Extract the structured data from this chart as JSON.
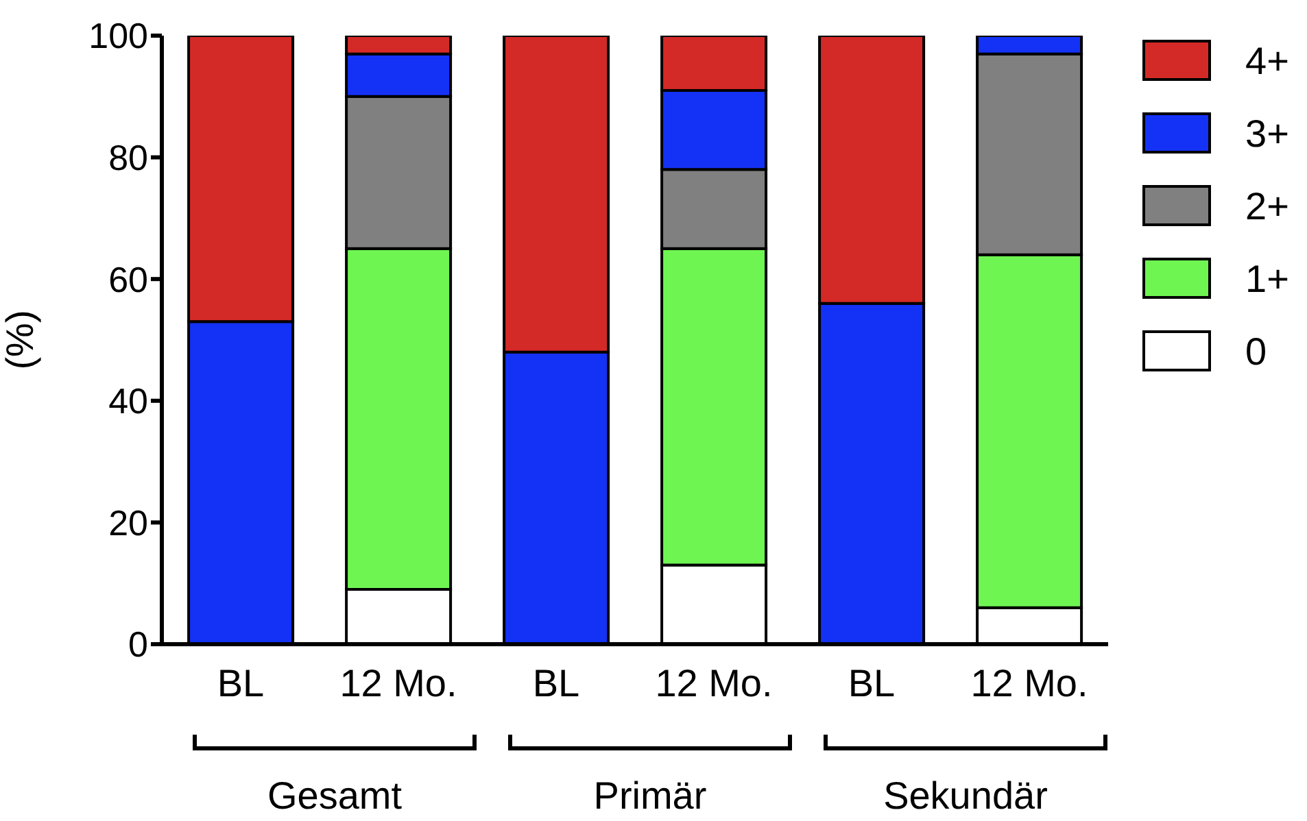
{
  "chart_data": {
    "type": "bar",
    "stacked": true,
    "ylabel": "(%)",
    "categories": [
      "BL",
      "12 Mo.",
      "BL",
      "12 Mo.",
      "BL",
      "12 Mo."
    ],
    "annotations": [
      "Gesamt",
      "Primär",
      "Sekundär"
    ],
    "series": [
      {
        "name": "0",
        "color": "#ffffff",
        "values": [
          0,
          9,
          0,
          13,
          0,
          6
        ]
      },
      {
        "name": "1+",
        "color": "#6ef552",
        "values": [
          0,
          56,
          0,
          52,
          0,
          58
        ]
      },
      {
        "name": "2+",
        "color": "#808080",
        "values": [
          0,
          25,
          0,
          13,
          0,
          33
        ]
      },
      {
        "name": "3+",
        "color": "#1432f5",
        "values": [
          53,
          7,
          48,
          13,
          56,
          3
        ]
      },
      {
        "name": "4+",
        "color": "#d42a27",
        "values": [
          47,
          3,
          52,
          9,
          44,
          0
        ]
      }
    ],
    "ylim": [
      0,
      100
    ],
    "yticks": [
      0,
      20,
      40,
      60,
      80,
      100
    ],
    "grid": false,
    "legend": "top right"
  }
}
